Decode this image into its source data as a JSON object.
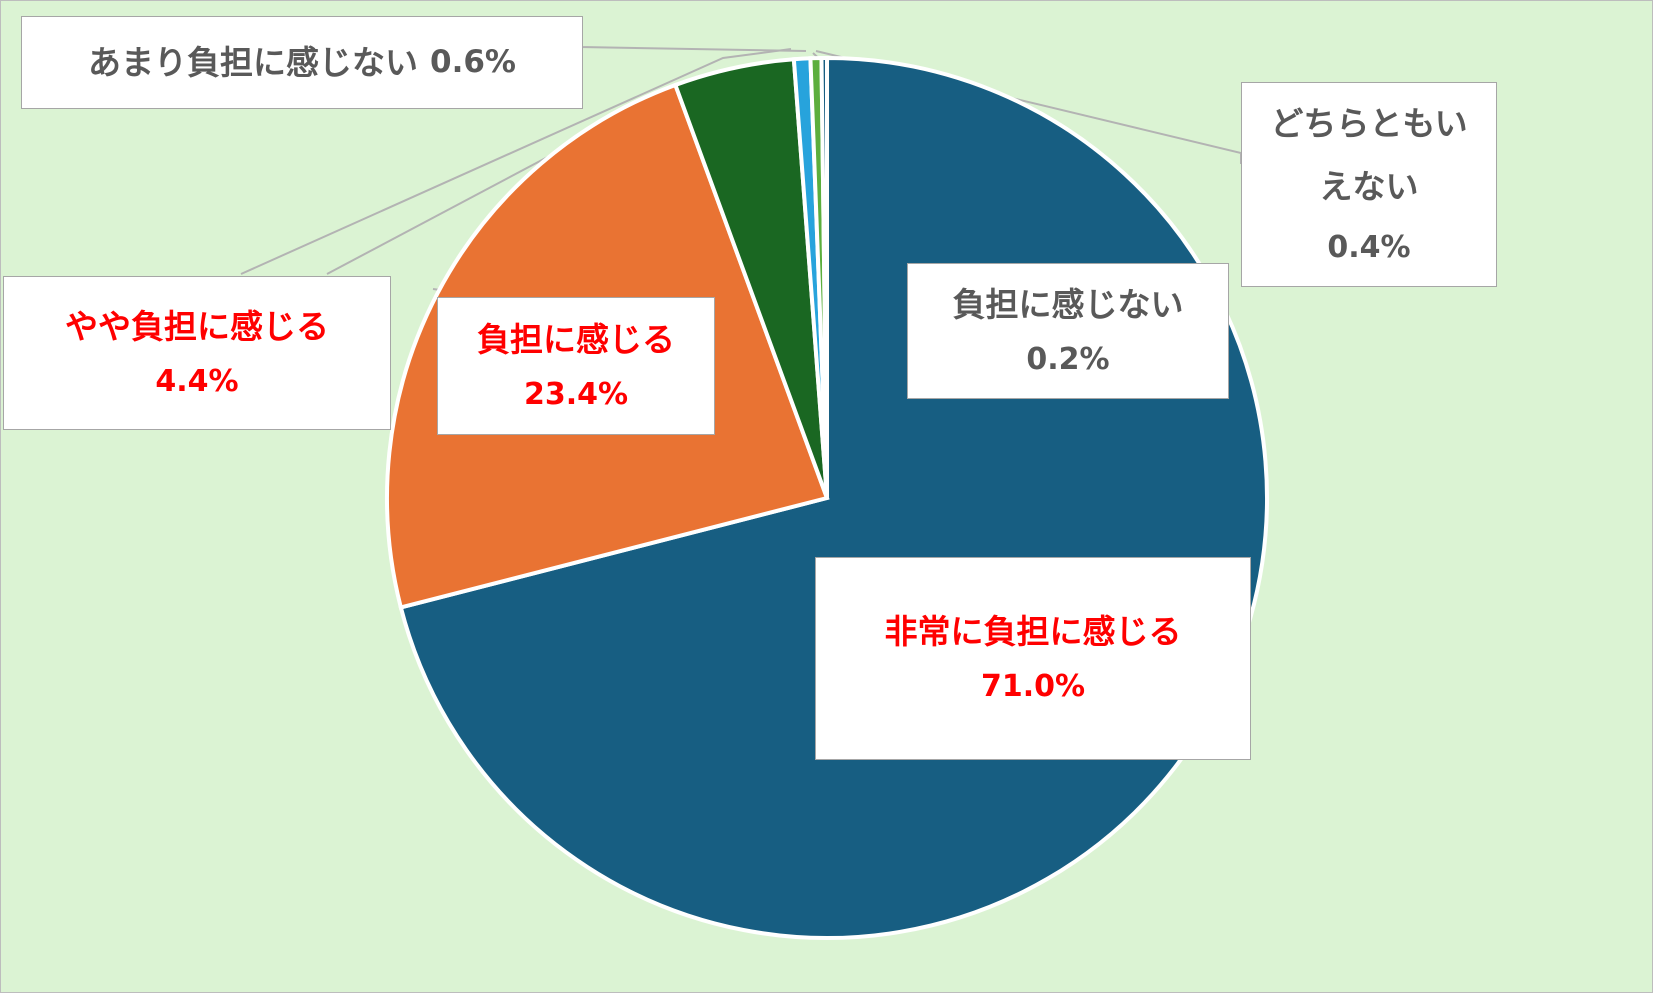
{
  "chart_data": {
    "type": "pie",
    "start_angle_deg": 0,
    "direction": "clockwise",
    "slices": [
      {
        "label": "非常に負担に感じる",
        "value": 71.0,
        "value_label": "71.0%",
        "color": "#175e82",
        "label_color": "#ff0000"
      },
      {
        "label": "負担に感じる",
        "value": 23.4,
        "value_label": "23.4%",
        "color": "#e97333",
        "label_color": "#ff0000"
      },
      {
        "label": "やや負担に感じる",
        "value": 4.4,
        "value_label": "4.4%",
        "color": "#1a6722",
        "label_color": "#ff0000"
      },
      {
        "label": "あまり負担に感じない",
        "value": 0.6,
        "value_label": "0.6%",
        "color": "#27a3dc",
        "label_color": "#595959"
      },
      {
        "label": "どちらともいえない",
        "value": 0.4,
        "value_label": "0.4%",
        "color": "#5cae3d",
        "label_color": "#595959"
      },
      {
        "label": "負担に感じない",
        "value": 0.2,
        "value_label": "0.2%",
        "color": "#175e82",
        "label_color": "#595959"
      }
    ]
  }
}
